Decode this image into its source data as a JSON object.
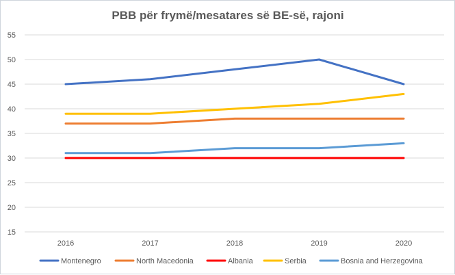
{
  "chart_data": {
    "type": "line",
    "title": "PBB për frymë/mesatares së BE-së, rajoni",
    "xlabel": "",
    "ylabel": "",
    "categories": [
      "2016",
      "2017",
      "2018",
      "2019",
      "2020"
    ],
    "ylim": [
      15,
      55
    ],
    "yticks": [
      15,
      20,
      25,
      30,
      35,
      40,
      45,
      50,
      55
    ],
    "grid": true,
    "legend_position": "bottom",
    "series": [
      {
        "name": "Montenegro",
        "color": "#4472c4",
        "values": [
          45,
          46,
          48,
          50,
          45
        ]
      },
      {
        "name": "North Macedonia",
        "color": "#ed7d31",
        "values": [
          37,
          37,
          38,
          38,
          38
        ]
      },
      {
        "name": "Albania",
        "color": "#ff0000",
        "values": [
          30,
          30,
          30,
          30,
          30
        ]
      },
      {
        "name": "Serbia",
        "color": "#ffc000",
        "values": [
          39,
          39,
          40,
          41,
          43
        ]
      },
      {
        "name": "Bosnia and Herzegovina",
        "color": "#5b9bd5",
        "values": [
          31,
          31,
          32,
          32,
          33
        ]
      }
    ]
  }
}
